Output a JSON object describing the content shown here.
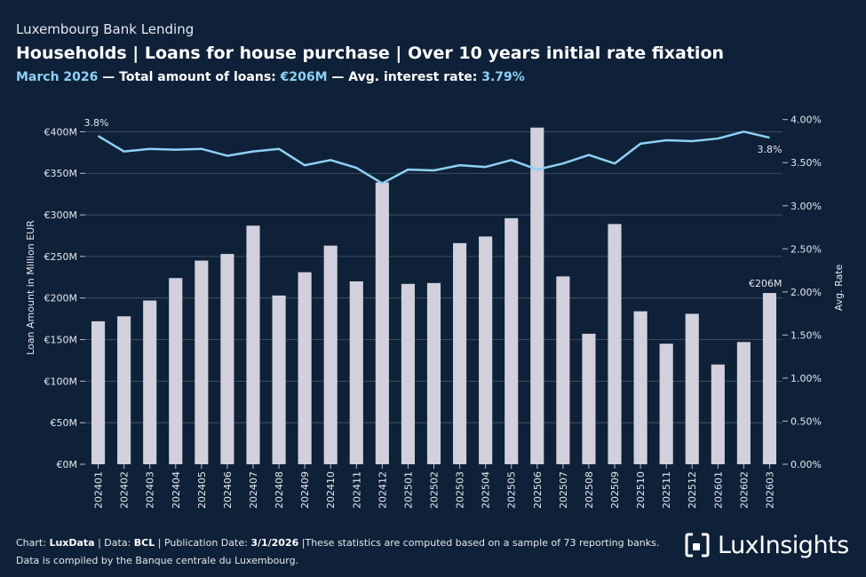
{
  "header": {
    "supertitle": "Luxembourg Bank Lending",
    "title": "Households | Loans for house purchase | Over 10 years initial rate fixation",
    "subtitle": {
      "period": "March 2026",
      "sep1": " — Total amount of loans: ",
      "total": "€206M",
      "sep2": " — Avg. interest rate: ",
      "rate": "3.79%"
    }
  },
  "chart_data": {
    "type": "bar",
    "categories": [
      "202401",
      "202402",
      "202403",
      "202404",
      "202405",
      "202406",
      "202407",
      "202408",
      "202409",
      "202410",
      "202411",
      "202412",
      "202501",
      "202502",
      "202503",
      "202504",
      "202505",
      "202506",
      "202507",
      "202508",
      "202509",
      "202510",
      "202511",
      "202512",
      "202601",
      "202602",
      "202603"
    ],
    "values": [
      172,
      178,
      197,
      224,
      245,
      253,
      287,
      203,
      231,
      263,
      220,
      339,
      217,
      218,
      266,
      274,
      296,
      405,
      226,
      157,
      289,
      184,
      145,
      181,
      120,
      147,
      206
    ],
    "line_values": [
      3.81,
      3.63,
      3.66,
      3.65,
      3.66,
      3.58,
      3.63,
      3.66,
      3.47,
      3.53,
      3.44,
      3.26,
      3.42,
      3.41,
      3.47,
      3.45,
      3.53,
      3.42,
      3.49,
      3.59,
      3.49,
      3.72,
      3.76,
      3.75,
      3.78,
      3.86,
      3.79
    ],
    "ylabel": "Loan Amount in Million EUR",
    "ylabel_right": "Avg. Rate",
    "ylim": [
      0,
      425
    ],
    "ylim_right": [
      0,
      4.1
    ],
    "yticks": [
      0,
      50,
      100,
      150,
      200,
      250,
      300,
      350,
      400
    ],
    "ytick_labels": [
      "€0M",
      "€50M",
      "€100M",
      "€150M",
      "€200M",
      "€250M",
      "€300M",
      "€350M",
      "€400M"
    ],
    "yticks_right": [
      0,
      0.5,
      1.0,
      1.5,
      2.0,
      2.5,
      3.0,
      3.5,
      4.0
    ],
    "ytick_labels_right": [
      "0.00%",
      "0.50%",
      "1.00%",
      "1.50%",
      "2.00%",
      "2.50%",
      "3.00%",
      "3.50%",
      "4.00%"
    ],
    "annotations": {
      "rate_first": "3.8%",
      "rate_last": "3.8%",
      "amount_last": "€206M"
    },
    "grid": true,
    "colors": {
      "bar": "#d1d0dc",
      "line": "#8ed0f5",
      "grid": "#4a5a6e",
      "background": "#0f2138"
    }
  },
  "footer": {
    "line1_prefix": "Chart: ",
    "chart_by": "LuxData",
    "data_prefix": " | Data: ",
    "data_source": "BCL",
    "pub_prefix": " | Publication Date: ",
    "pub_date": "3/1/2026",
    "note": " |These statistics are computed based on a sample of 73 reporting banks.",
    "line2": "Data is compiled by the Banque centrale du Luxembourg."
  },
  "logo": {
    "text": "LuxInsights",
    "icon": "luxinsights-logo-icon"
  }
}
